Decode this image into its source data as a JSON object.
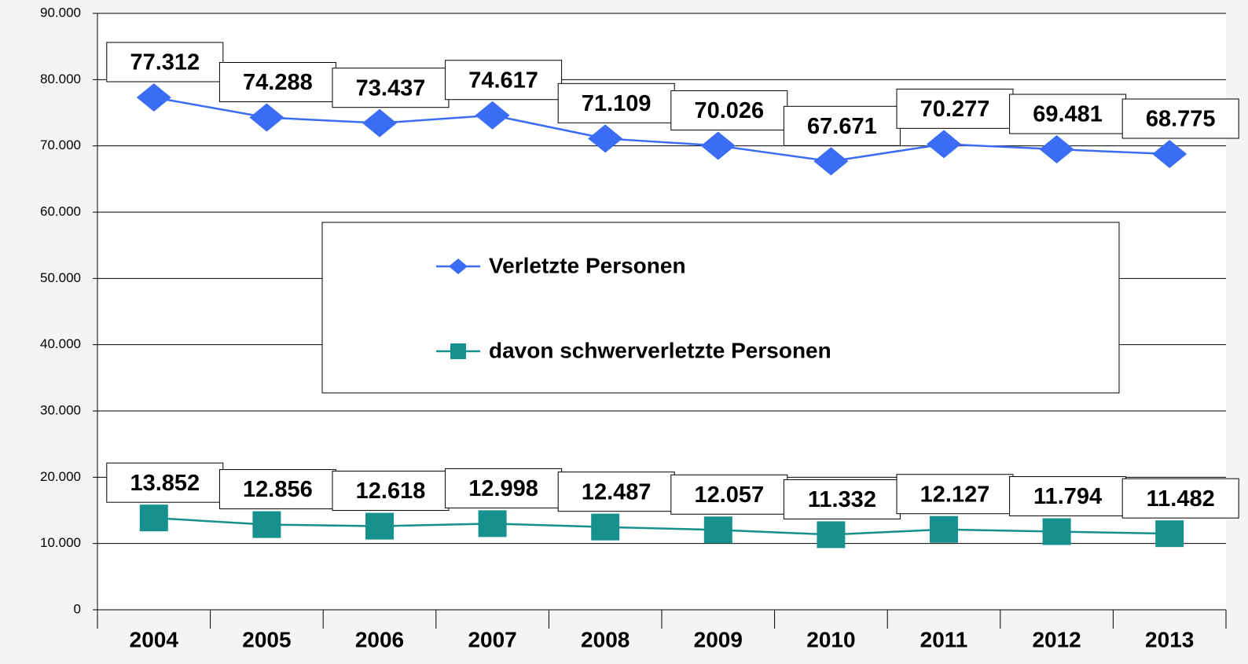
{
  "chart_data": {
    "type": "line",
    "categories": [
      "2004",
      "2005",
      "2006",
      "2007",
      "2008",
      "2009",
      "2010",
      "2011",
      "2012",
      "2013"
    ],
    "series": [
      {
        "name": "Verletzte Personen",
        "color": "#3a6cf4",
        "marker": "diamond",
        "values": [
          77312,
          74288,
          73437,
          74617,
          71109,
          70026,
          67671,
          70277,
          69481,
          68775
        ],
        "value_labels": [
          "77.312",
          "74.288",
          "73.437",
          "74.617",
          "71.109",
          "70.026",
          "67.671",
          "70.277",
          "69.481",
          "68.775"
        ]
      },
      {
        "name": "davon schwerverletzte Personen",
        "color": "#16918e",
        "marker": "square",
        "values": [
          13852,
          12856,
          12618,
          12998,
          12487,
          12057,
          11332,
          12127,
          11794,
          11482
        ],
        "value_labels": [
          "13.852",
          "12.856",
          "12.618",
          "12.998",
          "12.487",
          "12.057",
          "11.332",
          "12.127",
          "11.794",
          "11.482"
        ]
      }
    ],
    "ylim": [
      0,
      90000
    ],
    "yticks": [
      0,
      {
        "value": 10000,
        "label": "10.000"
      },
      {
        "value": 20000,
        "label": "20.000"
      },
      {
        "value": 30000,
        "label": "30.000"
      },
      {
        "value": 40000,
        "label": "40.000"
      },
      {
        "value": 50000,
        "label": "50.000"
      },
      {
        "value": 60000,
        "label": "60.000"
      },
      {
        "value": 70000,
        "label": "70.000"
      },
      {
        "value": 80000,
        "label": "80.000"
      },
      {
        "value": 90000,
        "label": "90.000"
      }
    ],
    "grid": true
  }
}
